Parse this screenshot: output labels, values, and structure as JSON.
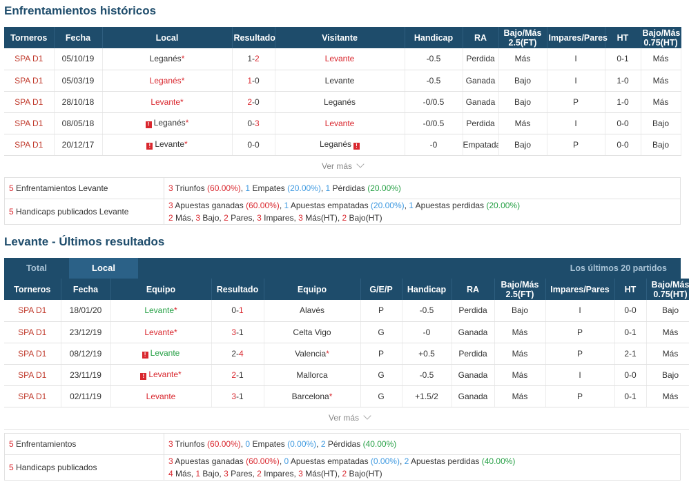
{
  "h2h": {
    "title": "Enfrentamientos históricos",
    "headers": [
      "Torneros",
      "Fecha",
      "Local",
      "Resultado",
      "Visitante",
      "Handicap",
      "RA",
      "Bajo/Más 2.5(FT)",
      "Impares/Pares",
      "HT",
      "Bajo/Más 0.75(HT)"
    ],
    "rows": [
      {
        "league": "SPA D1",
        "date": "05/10/19",
        "home": "Leganés",
        "home_star": true,
        "home_color": "normal",
        "home_flag": false,
        "score_l": "1",
        "score_r": "2",
        "score_side": "right",
        "away": "Levante",
        "away_color": "red",
        "away_flag": false,
        "handicap": "-0.5",
        "ra": "Perdida",
        "ra_color": "green",
        "ou": "Más",
        "ou_color": "red",
        "oe": "I",
        "oe_color": "green",
        "ht": "0-1",
        "ht_ou": "Más",
        "ht_ou_color": "red"
      },
      {
        "league": "SPA D1",
        "date": "05/03/19",
        "home": "Leganés",
        "home_star": true,
        "home_color": "red",
        "home_flag": false,
        "score_l": "1",
        "score_r": "0",
        "score_side": "left",
        "away": "Levante",
        "away_color": "normal",
        "away_flag": false,
        "handicap": "-0.5",
        "ra": "Ganada",
        "ra_color": "red",
        "ou": "Bajo",
        "ou_color": "green",
        "oe": "I",
        "oe_color": "green",
        "ht": "1-0",
        "ht_ou": "Más",
        "ht_ou_color": "red"
      },
      {
        "league": "SPA D1",
        "date": "28/10/18",
        "home": "Levante",
        "home_star": true,
        "home_color": "red",
        "home_flag": false,
        "score_l": "2",
        "score_r": "0",
        "score_side": "left",
        "away": "Leganés",
        "away_color": "normal",
        "away_flag": false,
        "handicap": "-0/0.5",
        "ra": "Ganada",
        "ra_color": "red",
        "ou": "Bajo",
        "ou_color": "green",
        "oe": "P",
        "oe_color": "red",
        "ht": "1-0",
        "ht_ou": "Más",
        "ht_ou_color": "red"
      },
      {
        "league": "SPA D1",
        "date": "08/05/18",
        "home": "Leganés",
        "home_star": true,
        "home_color": "normal",
        "home_flag": true,
        "score_l": "0",
        "score_r": "3",
        "score_side": "right",
        "away": "Levante",
        "away_color": "red",
        "away_flag": false,
        "handicap": "-0/0.5",
        "ra": "Perdida",
        "ra_color": "green",
        "ou": "Más",
        "ou_color": "red",
        "oe": "I",
        "oe_color": "green",
        "ht": "0-0",
        "ht_ou": "Bajo",
        "ht_ou_color": "green"
      },
      {
        "league": "SPA D1",
        "date": "20/12/17",
        "home": "Levante",
        "home_star": true,
        "home_color": "normal",
        "home_flag": true,
        "score_l": "0",
        "score_r": "0",
        "score_side": "none",
        "away": "Leganés",
        "away_color": "normal",
        "away_flag": true,
        "handicap": "-0",
        "ra": "Empatada",
        "ra_color": "blue",
        "ou": "Bajo",
        "ou_color": "green",
        "oe": "P",
        "oe_color": "red",
        "ht": "0-0",
        "ht_ou": "Bajo",
        "ht_ou_color": "green"
      }
    ],
    "more": "Ver más",
    "summary1": {
      "n": "5",
      "label": "Enfrentamientos Levante",
      "w": "3",
      "w_txt": " Triunfos ",
      "w_pct": "(60.00%)",
      "d": "1",
      "d_txt": " Empates ",
      "d_pct": "(20.00%)",
      "l": "1",
      "l_txt": " Pérdidas ",
      "l_pct": "(20.00%)"
    },
    "summary2": {
      "n": "5",
      "label": "Handicaps publicados Levante",
      "w": "3",
      "w_txt": " Apuestas ganadas ",
      "w_pct": "(60.00%)",
      "d": "1",
      "d_txt": " Apuestas empatadas ",
      "d_pct": "(20.00%)",
      "l": "1",
      "l_txt": " Apuestas perdidas ",
      "l_pct": "(20.00%)",
      "line2": [
        {
          "n": "2",
          "t": " Más, "
        },
        {
          "n": "3",
          "t": " Bajo, "
        },
        {
          "n": "2",
          "t": " Pares, "
        },
        {
          "n": "3",
          "t": " Impares, "
        },
        {
          "n": "3",
          "t": " Más(HT), "
        },
        {
          "n": "2",
          "t": " Bajo(HT)"
        }
      ]
    }
  },
  "recent": {
    "title": "Levante - Últimos resultados",
    "tab_total": "Total",
    "tab_local": "Local",
    "tab_right": "Los últimos 20 partidos",
    "headers": [
      "Torneros",
      "Fecha",
      "Equipo",
      "Resultado",
      "Equipo",
      "G/E/P",
      "Handicap",
      "RA",
      "Bajo/Más 2.5(FT)",
      "Impares/Pares",
      "HT",
      "Bajo/Más 0.75(HT)"
    ],
    "rows": [
      {
        "league": "SPA D1",
        "date": "18/01/20",
        "home": "Levante",
        "home_star": true,
        "home_color": "green",
        "home_flag": false,
        "score_l": "0",
        "score_r": "1",
        "score_side": "right",
        "away": "Alavés",
        "away_star": false,
        "gep": "P",
        "gep_color": "green",
        "handicap": "-0.5",
        "ra": "Perdida",
        "ra_color": "green",
        "ou": "Bajo",
        "ou_color": "green",
        "oe": "I",
        "oe_color": "green",
        "ht": "0-0",
        "ht_ou": "Bajo",
        "ht_ou_color": "green"
      },
      {
        "league": "SPA D1",
        "date": "23/12/19",
        "home": "Levante",
        "home_star": true,
        "home_color": "red",
        "home_flag": false,
        "score_l": "3",
        "score_r": "1",
        "score_side": "left",
        "away": "Celta Vigo",
        "away_star": false,
        "gep": "G",
        "gep_color": "red",
        "handicap": "-0",
        "ra": "Ganada",
        "ra_color": "red",
        "ou": "Más",
        "ou_color": "red",
        "oe": "P",
        "oe_color": "red",
        "ht": "0-1",
        "ht_ou": "Más",
        "ht_ou_color": "red"
      },
      {
        "league": "SPA D1",
        "date": "08/12/19",
        "home": "Levante",
        "home_star": false,
        "home_color": "green",
        "home_flag": true,
        "score_l": "2",
        "score_r": "4",
        "score_side": "right",
        "away": "Valencia",
        "away_star": true,
        "gep": "P",
        "gep_color": "green",
        "handicap": "+0.5",
        "ra": "Perdida",
        "ra_color": "green",
        "ou": "Más",
        "ou_color": "red",
        "oe": "P",
        "oe_color": "red",
        "ht": "2-1",
        "ht_ou": "Más",
        "ht_ou_color": "red"
      },
      {
        "league": "SPA D1",
        "date": "23/11/19",
        "home": "Levante",
        "home_star": true,
        "home_color": "red",
        "home_flag": true,
        "score_l": "2",
        "score_r": "1",
        "score_side": "left",
        "away": "Mallorca",
        "away_star": false,
        "gep": "G",
        "gep_color": "red",
        "handicap": "-0.5",
        "ra": "Ganada",
        "ra_color": "red",
        "ou": "Más",
        "ou_color": "red",
        "oe": "I",
        "oe_color": "green",
        "ht": "0-0",
        "ht_ou": "Bajo",
        "ht_ou_color": "green"
      },
      {
        "league": "SPA D1",
        "date": "02/11/19",
        "home": "Levante",
        "home_star": false,
        "home_color": "red",
        "home_flag": false,
        "score_l": "3",
        "score_r": "1",
        "score_side": "left",
        "away": "Barcelona",
        "away_star": true,
        "gep": "G",
        "gep_color": "red",
        "handicap": "+1.5/2",
        "ra": "Ganada",
        "ra_color": "red",
        "ou": "Más",
        "ou_color": "red",
        "oe": "P",
        "oe_color": "red",
        "ht": "0-1",
        "ht_ou": "Más",
        "ht_ou_color": "red"
      }
    ],
    "more": "Ver más",
    "summary1": {
      "n": "5",
      "label": "Enfrentamientos",
      "w": "3",
      "w_txt": " Triunfos ",
      "w_pct": "(60.00%)",
      "d": "0",
      "d_txt": " Empates ",
      "d_pct": "(0.00%)",
      "l": "2",
      "l_txt": " Pérdidas ",
      "l_pct": "(40.00%)"
    },
    "summary2": {
      "n": "5",
      "label": "Handicaps publicados",
      "w": "3",
      "w_txt": " Apuestas ganadas ",
      "w_pct": "(60.00%)",
      "d": "0",
      "d_txt": " Apuestas empatadas ",
      "d_pct": "(0.00%)",
      "l": "2",
      "l_txt": " Apuestas perdidas ",
      "l_pct": "(40.00%)",
      "line2": [
        {
          "n": "4",
          "t": " Más, "
        },
        {
          "n": "1",
          "t": " Bajo, "
        },
        {
          "n": "3",
          "t": " Pares, "
        },
        {
          "n": "2",
          "t": " Impares, "
        },
        {
          "n": "3",
          "t": " Más(HT), "
        },
        {
          "n": "2",
          "t": " Bajo(HT)"
        }
      ]
    }
  },
  "colors": {
    "header_bg": "#1e4c6b",
    "red": "#d9272e",
    "green": "#26a045",
    "blue": "#3e99e0"
  },
  "icons": {
    "flag": "red-card-icon",
    "more": "chevron-down-icon"
  }
}
